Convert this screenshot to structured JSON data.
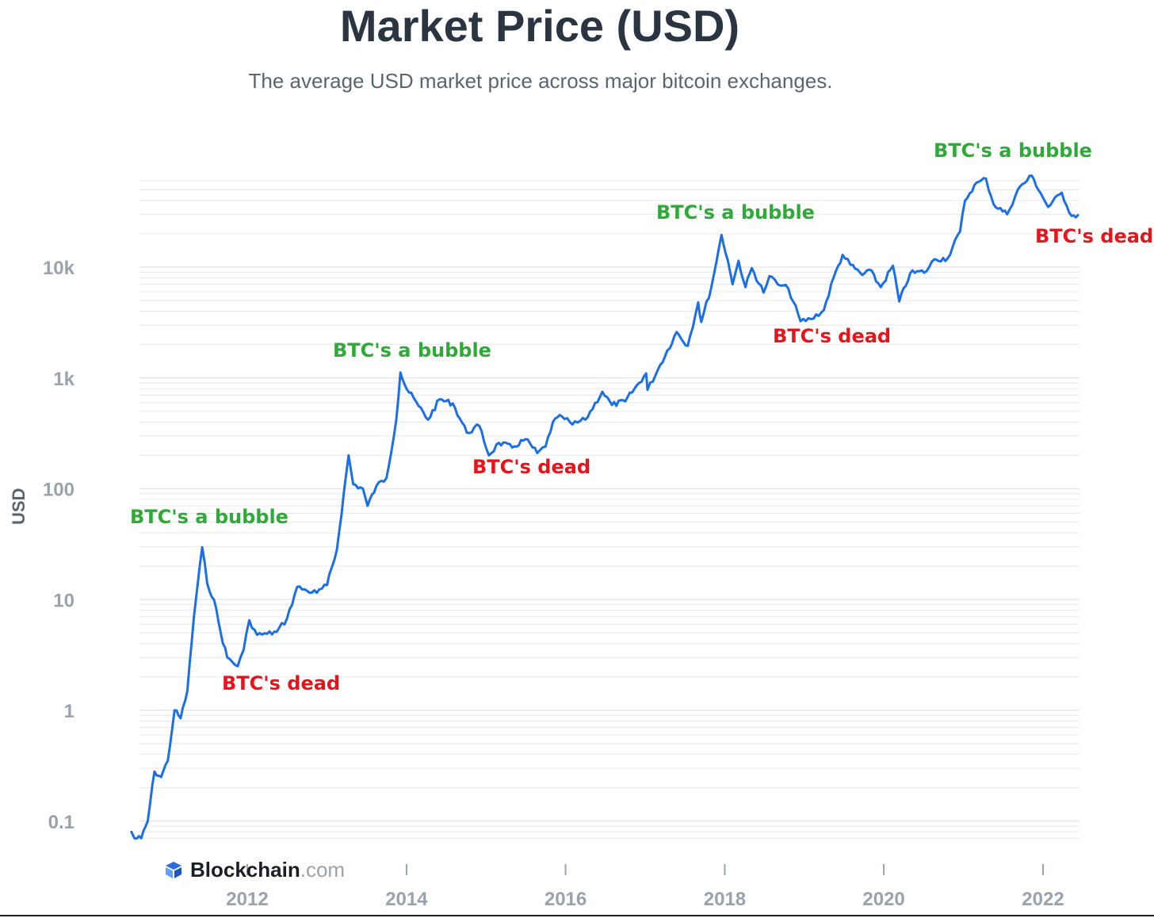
{
  "header": {
    "title": "Market Price (USD)",
    "subtitle": "The average USD market price across major bitcoin exchanges."
  },
  "brand": {
    "name": "Blockchain",
    "tld": ".com"
  },
  "colors": {
    "line": "#1a6fe8",
    "bubble": "#2eaa36",
    "dead": "#e8131b",
    "tick": "#9aa2ad",
    "grid": "#e6e8eb"
  },
  "chart_data": {
    "type": "line",
    "title": "Market Price (USD)",
    "subtitle": "The average USD market price across major bitcoin exchanges.",
    "xlabel": "",
    "ylabel": "USD",
    "yscale": "log",
    "ylim": [
      0.07,
      120000
    ],
    "xlim": [
      "2010-07-01",
      "2022-06-15"
    ],
    "grid": true,
    "y_ticks": [
      {
        "value": 0.1,
        "label": "0.1"
      },
      {
        "value": 1,
        "label": "1"
      },
      {
        "value": 10,
        "label": "10"
      },
      {
        "value": 100,
        "label": "100"
      },
      {
        "value": 1000,
        "label": "1k"
      },
      {
        "value": 10000,
        "label": "10k"
      }
    ],
    "x_ticks": [
      {
        "date": "2012-01-01",
        "label": "2012"
      },
      {
        "date": "2014-01-01",
        "label": "2014"
      },
      {
        "date": "2016-01-01",
        "label": "2016"
      },
      {
        "date": "2018-01-01",
        "label": "2018"
      },
      {
        "date": "2020-01-01",
        "label": "2020"
      },
      {
        "date": "2022-01-01",
        "label": "2022"
      }
    ],
    "series": [
      {
        "color": "#1a6fe8",
        "points": [
          [
            "2010-07-18",
            0.08
          ],
          [
            "2010-08-01",
            0.07
          ],
          [
            "2010-09-01",
            0.07
          ],
          [
            "2010-10-01",
            0.1
          ],
          [
            "2010-11-01",
            0.28
          ],
          [
            "2010-12-01",
            0.25
          ],
          [
            "2011-01-01",
            0.35
          ],
          [
            "2011-02-01",
            1.0
          ],
          [
            "2011-03-01",
            0.85
          ],
          [
            "2011-04-01",
            1.5
          ],
          [
            "2011-05-01",
            7.0
          ],
          [
            "2011-06-08",
            29.6
          ],
          [
            "2011-07-01",
            14.0
          ],
          [
            "2011-08-01",
            10.0
          ],
          [
            "2011-09-01",
            5.0
          ],
          [
            "2011-10-01",
            3.0
          ],
          [
            "2011-11-18",
            2.5
          ],
          [
            "2011-12-15",
            3.5
          ],
          [
            "2012-01-10",
            6.5
          ],
          [
            "2012-02-15",
            4.8
          ],
          [
            "2012-04-01",
            4.9
          ],
          [
            "2012-05-15",
            5.1
          ],
          [
            "2012-07-01",
            6.7
          ],
          [
            "2012-08-17",
            13.0
          ],
          [
            "2012-10-01",
            12.0
          ],
          [
            "2012-11-15",
            11.5
          ],
          [
            "2013-01-01",
            13.5
          ],
          [
            "2013-02-15",
            28.0
          ],
          [
            "2013-04-10",
            200
          ],
          [
            "2013-05-01",
            110
          ],
          [
            "2013-06-15",
            100
          ],
          [
            "2013-07-06",
            70
          ],
          [
            "2013-08-15",
            105
          ],
          [
            "2013-10-01",
            125
          ],
          [
            "2013-11-15",
            420
          ],
          [
            "2013-12-04",
            1120
          ],
          [
            "2014-01-01",
            800
          ],
          [
            "2014-02-25",
            560
          ],
          [
            "2014-04-10",
            420
          ],
          [
            "2014-06-01",
            640
          ],
          [
            "2014-08-01",
            590
          ],
          [
            "2014-10-05",
            320
          ],
          [
            "2014-12-01",
            370
          ],
          [
            "2015-01-14",
            200
          ],
          [
            "2015-03-01",
            260
          ],
          [
            "2015-05-01",
            235
          ],
          [
            "2015-07-01",
            280
          ],
          [
            "2015-08-24",
            210
          ],
          [
            "2015-10-01",
            240
          ],
          [
            "2015-11-04",
            400
          ],
          [
            "2015-12-15",
            450
          ],
          [
            "2016-02-01",
            380
          ],
          [
            "2016-04-01",
            420
          ],
          [
            "2016-06-18",
            750
          ],
          [
            "2016-08-01",
            570
          ],
          [
            "2016-10-01",
            615
          ],
          [
            "2017-01-05",
            1100
          ],
          [
            "2017-01-11",
            780
          ],
          [
            "2017-03-01",
            1200
          ],
          [
            "2017-05-25",
            2600
          ],
          [
            "2017-07-15",
            1950
          ],
          [
            "2017-09-01",
            4800
          ],
          [
            "2017-09-15",
            3200
          ],
          [
            "2017-11-01",
            6700
          ],
          [
            "2017-12-17",
            19500
          ],
          [
            "2018-01-15",
            11500
          ],
          [
            "2018-02-06",
            7000
          ],
          [
            "2018-03-05",
            11400
          ],
          [
            "2018-04-06",
            6600
          ],
          [
            "2018-05-05",
            9800
          ],
          [
            "2018-06-28",
            5900
          ],
          [
            "2018-07-25",
            8300
          ],
          [
            "2018-09-01",
            7000
          ],
          [
            "2018-10-20",
            6400
          ],
          [
            "2018-12-15",
            3250
          ],
          [
            "2019-02-01",
            3400
          ],
          [
            "2019-04-01",
            4100
          ],
          [
            "2019-05-15",
            8000
          ],
          [
            "2019-06-26",
            12900
          ],
          [
            "2019-08-01",
            10500
          ],
          [
            "2019-09-24",
            8500
          ],
          [
            "2019-10-26",
            9500
          ],
          [
            "2019-12-18",
            6600
          ],
          [
            "2020-02-12",
            10300
          ],
          [
            "2020-03-12",
            4900
          ],
          [
            "2020-05-01",
            8800
          ],
          [
            "2020-07-15",
            9200
          ],
          [
            "2020-08-20",
            11800
          ],
          [
            "2020-10-20",
            12000
          ],
          [
            "2020-12-16",
            21000
          ],
          [
            "2021-01-08",
            40000
          ],
          [
            "2021-02-20",
            55000
          ],
          [
            "2021-04-14",
            63000
          ],
          [
            "2021-05-19",
            37000
          ],
          [
            "2021-07-20",
            30000
          ],
          [
            "2021-09-07",
            50000
          ],
          [
            "2021-11-10",
            67000
          ],
          [
            "2021-12-20",
            47000
          ],
          [
            "2022-01-24",
            35000
          ],
          [
            "2022-03-28",
            47000
          ],
          [
            "2022-05-12",
            29000
          ],
          [
            "2022-06-10",
            29500
          ]
        ]
      }
    ],
    "annotations": [
      {
        "text": "BTC's a bubble",
        "kind": "bubble"
      },
      {
        "text": "BTC's dead",
        "kind": "dead"
      },
      {
        "text": "BTC's a bubble",
        "kind": "bubble"
      },
      {
        "text": "BTC's dead",
        "kind": "dead"
      },
      {
        "text": "BTC's a bubble",
        "kind": "bubble"
      },
      {
        "text": "BTC's dead",
        "kind": "dead"
      },
      {
        "text": "BTC's a bubble",
        "kind": "bubble"
      },
      {
        "text": "BTC's dead",
        "kind": "dead"
      }
    ]
  }
}
